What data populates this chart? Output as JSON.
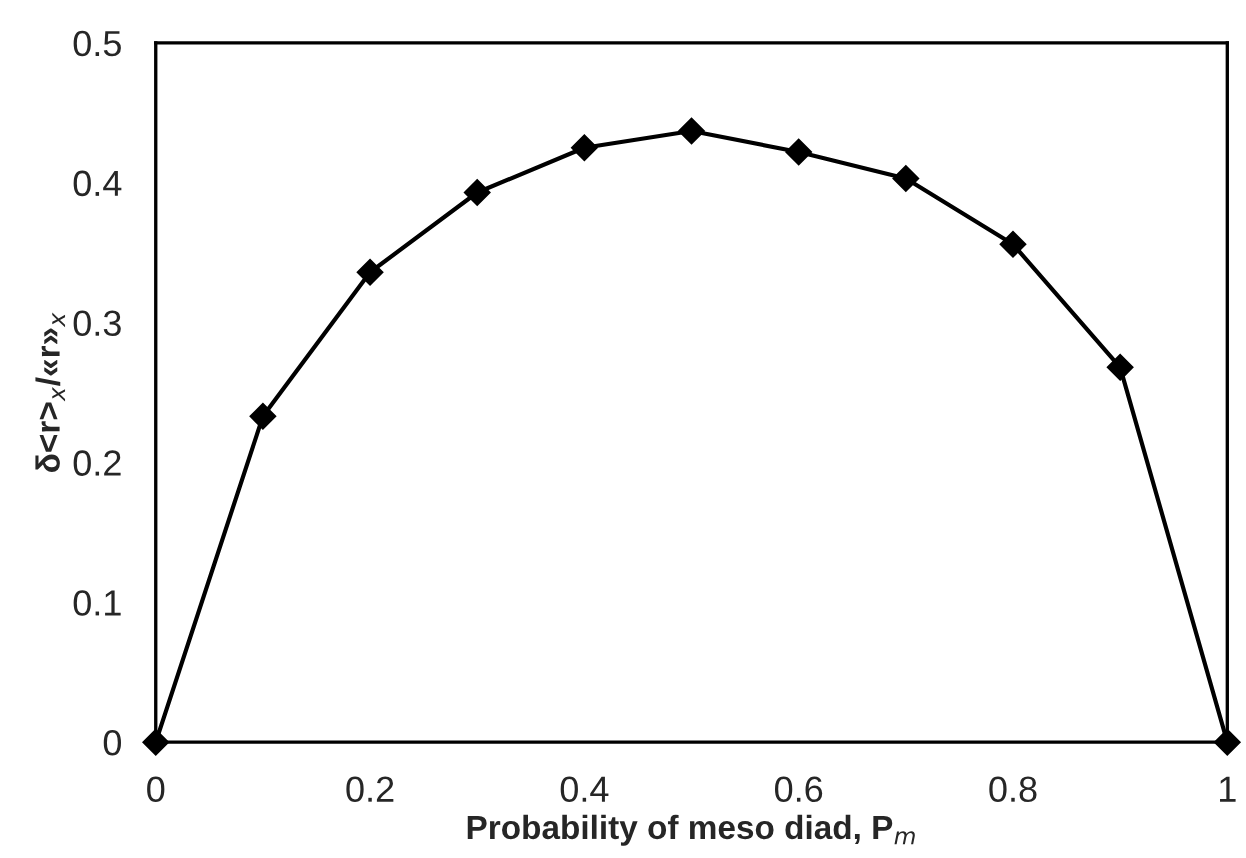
{
  "chart_data": {
    "type": "line",
    "xlabel": "Probability of meso diad, P$_{m}$",
    "ylabel": "δ<r>$_{x}$/«r»$_{x}$",
    "x": [
      0,
      0.1,
      0.2,
      0.3,
      0.4,
      0.5,
      0.6,
      0.7,
      0.8,
      0.9,
      1.0
    ],
    "series": [
      {
        "color": "#000000",
        "values": [
          0,
          0.233,
          0.336,
          0.393,
          0.425,
          0.437,
          0.422,
          0.403,
          0.356,
          0.268,
          0
        ]
      }
    ],
    "xlim": [
      0,
      1
    ],
    "ylim": [
      0,
      0.5
    ],
    "xticks": [
      0,
      0.2,
      0.4,
      0.6,
      0.8,
      1
    ],
    "yticks": [
      0,
      0.1,
      0.2,
      0.3,
      0.4,
      0.5
    ],
    "marker": "diamond",
    "line_style": "solid",
    "grid": false,
    "legend": false
  }
}
